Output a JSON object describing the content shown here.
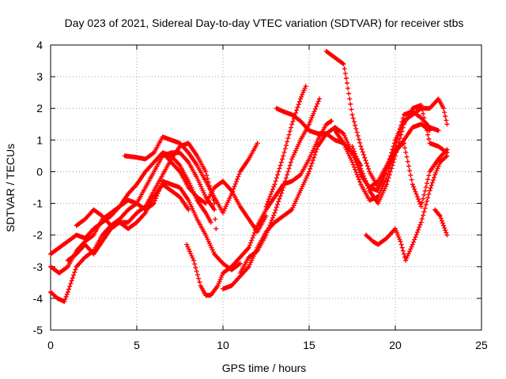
{
  "chart_data": {
    "type": "scatter",
    "title": "Day 023 of 2021, Sidereal Day-to-day VTEC variation (SDTVAR) for receiver stbs",
    "xlabel": "GPS time / hours",
    "ylabel": "SDTVAR / TECUs",
    "xlim": [
      0,
      25
    ],
    "ylim": [
      -5,
      4
    ],
    "x_ticks": [
      "0",
      "5",
      "10",
      "15",
      "20",
      "25"
    ],
    "y_ticks": [
      "4",
      "3",
      "2",
      "1",
      "0",
      "-1",
      "-2",
      "-3",
      "-4",
      "-5"
    ],
    "grid": true,
    "legend": "none",
    "marker": "plus",
    "color": "#ff0000",
    "series": [
      {
        "points": [
          [
            0,
            -2.6
          ],
          [
            0.5,
            -2.4
          ],
          [
            1,
            -2.2
          ],
          [
            1.5,
            -2.0
          ],
          [
            2,
            -2.1
          ],
          [
            2.5,
            -1.8
          ],
          [
            3,
            -1.6
          ],
          [
            3.5,
            -1.4
          ],
          [
            4,
            -1.1
          ],
          [
            4.5,
            -0.7
          ],
          [
            5,
            -0.4
          ],
          [
            5.5,
            0.0
          ],
          [
            6,
            0.3
          ],
          [
            6.5,
            0.6
          ],
          [
            7,
            0.5
          ],
          [
            7.5,
            0.2
          ],
          [
            8,
            -0.3
          ],
          [
            8.5,
            -0.9
          ],
          [
            9,
            -1.3
          ],
          [
            9.3,
            -1.6
          ]
        ]
      },
      {
        "points": [
          [
            0,
            -3.8
          ],
          [
            0.4,
            -4.0
          ],
          [
            0.8,
            -4.1
          ],
          [
            1,
            -3.8
          ],
          [
            1.5,
            -3.0
          ],
          [
            2,
            -2.7
          ],
          [
            2.5,
            -2.5
          ],
          [
            3,
            -2.0
          ],
          [
            3.5,
            -1.7
          ],
          [
            4,
            -1.5
          ],
          [
            4.5,
            -1.2
          ],
          [
            5,
            -1.0
          ],
          [
            5.5,
            -0.5
          ],
          [
            6,
            0.0
          ],
          [
            6.5,
            0.5
          ],
          [
            7,
            0.6
          ],
          [
            7.5,
            0.6
          ],
          [
            8,
            0.3
          ],
          [
            8.5,
            -0.2
          ],
          [
            9,
            -0.8
          ],
          [
            9.5,
            -1.2
          ],
          [
            9.6,
            -1.8
          ]
        ]
      },
      {
        "points": [
          [
            0,
            -3.0
          ],
          [
            0.5,
            -3.2
          ],
          [
            1,
            -3.0
          ],
          [
            1.5,
            -2.5
          ],
          [
            2,
            -2.2
          ],
          [
            2.5,
            -2.0
          ],
          [
            3,
            -1.5
          ],
          [
            3.5,
            -1.3
          ],
          [
            4,
            -1.1
          ],
          [
            4.5,
            -0.9
          ],
          [
            5,
            -1.0
          ],
          [
            5.5,
            -1.2
          ],
          [
            6,
            -1.0
          ],
          [
            6.5,
            -0.3
          ],
          [
            7,
            -0.4
          ],
          [
            7.5,
            -0.5
          ],
          [
            8,
            -0.9
          ],
          [
            8.5,
            -1.5
          ],
          [
            9,
            -2.0
          ],
          [
            9.5,
            -2.6
          ],
          [
            10,
            -2.9
          ],
          [
            10.5,
            -3.1
          ],
          [
            11,
            -2.9
          ]
        ]
      },
      {
        "points": [
          [
            1,
            -2.8
          ],
          [
            1.5,
            -2.6
          ],
          [
            2,
            -2.3
          ],
          [
            2.5,
            -2.6
          ],
          [
            3,
            -2.2
          ],
          [
            3.5,
            -1.8
          ],
          [
            4,
            -1.6
          ],
          [
            4.5,
            -1.6
          ],
          [
            5,
            -1.3
          ],
          [
            5.5,
            -1.1
          ],
          [
            6,
            -0.6
          ],
          [
            6.5,
            -0.1
          ],
          [
            7,
            0.4
          ],
          [
            7.5,
            0.8
          ],
          [
            8,
            0.9
          ],
          [
            8.5,
            0.5
          ],
          [
            9,
            0.0
          ],
          [
            9.5,
            -1.0
          ]
        ]
      },
      {
        "points": [
          [
            1.5,
            -1.7
          ],
          [
            2,
            -1.5
          ],
          [
            2.5,
            -1.2
          ],
          [
            3,
            -1.4
          ],
          [
            3.5,
            -1.7
          ],
          [
            4,
            -1.6
          ],
          [
            4.5,
            -1.8
          ],
          [
            5,
            -1.6
          ],
          [
            5.5,
            -1.3
          ],
          [
            6,
            -0.8
          ],
          [
            6.5,
            -0.4
          ],
          [
            7,
            -0.6
          ],
          [
            7.5,
            -0.8
          ],
          [
            8,
            -1.2
          ]
        ]
      },
      {
        "points": [
          [
            4.3,
            0.5
          ],
          [
            5,
            0.45
          ],
          [
            5.5,
            0.4
          ],
          [
            6,
            0.6
          ],
          [
            6.5,
            1.1
          ],
          [
            7,
            1.0
          ],
          [
            7.5,
            0.9
          ],
          [
            8,
            0.6
          ],
          [
            8.5,
            0.2
          ],
          [
            9,
            -0.3
          ],
          [
            9.5,
            -0.8
          ],
          [
            10,
            -1.3
          ],
          [
            10.5,
            -0.7
          ],
          [
            11,
            0.0
          ],
          [
            11.5,
            0.4
          ],
          [
            12,
            0.9
          ]
        ]
      },
      {
        "points": [
          [
            6.5,
            0.6
          ],
          [
            7,
            0.3
          ],
          [
            7.5,
            0.0
          ],
          [
            8,
            -0.5
          ],
          [
            8.5,
            -0.8
          ],
          [
            9,
            -1.0
          ],
          [
            9.5,
            -0.5
          ],
          [
            10,
            -0.3
          ],
          [
            10.5,
            -0.6
          ],
          [
            11,
            -1.1
          ],
          [
            11.5,
            -1.5
          ],
          [
            12,
            -1.9
          ],
          [
            12.5,
            -1.4
          ]
        ]
      },
      {
        "points": [
          [
            7.9,
            -2.3
          ],
          [
            8.3,
            -2.8
          ],
          [
            8.7,
            -3.6
          ],
          [
            9,
            -3.9
          ],
          [
            9.3,
            -3.9
          ],
          [
            9.7,
            -3.6
          ],
          [
            10,
            -3.2
          ],
          [
            10.5,
            -3.0
          ],
          [
            11,
            -2.7
          ],
          [
            11.5,
            -2.4
          ],
          [
            12,
            -1.7
          ],
          [
            12.5,
            -1.2
          ],
          [
            13,
            -0.8
          ],
          [
            13.5,
            -0.4
          ],
          [
            14,
            -0.3
          ],
          [
            14.5,
            -0.1
          ],
          [
            15,
            0.4
          ],
          [
            15.5,
            1.0
          ],
          [
            16,
            1.5
          ],
          [
            16.3,
            1.6
          ]
        ]
      },
      {
        "points": [
          [
            10,
            -3.7
          ],
          [
            10.5,
            -3.6
          ],
          [
            11,
            -3.3
          ],
          [
            11.5,
            -3.0
          ],
          [
            12,
            -2.4
          ],
          [
            12.5,
            -1.9
          ],
          [
            13,
            -1.6
          ],
          [
            13.5,
            -1.4
          ],
          [
            14,
            -1.2
          ],
          [
            14.5,
            -0.6
          ],
          [
            15,
            0.0
          ],
          [
            15.5,
            0.8
          ],
          [
            16,
            1.2
          ],
          [
            16.5,
            1.0
          ],
          [
            17,
            0.9
          ],
          [
            17.5,
            0.6
          ],
          [
            18,
            0.2
          ]
        ]
      },
      {
        "points": [
          [
            11,
            -3.2
          ],
          [
            11.5,
            -2.7
          ],
          [
            12,
            -2.5
          ],
          [
            12.5,
            -2.0
          ],
          [
            13,
            -1.3
          ],
          [
            13.5,
            -0.5
          ],
          [
            14,
            0.4
          ],
          [
            14.5,
            1.0
          ],
          [
            15,
            1.5
          ],
          [
            15.3,
            1.9
          ],
          [
            15.6,
            2.3
          ]
        ]
      },
      {
        "points": [
          [
            12.5,
            -1.1
          ],
          [
            13,
            -0.4
          ],
          [
            13.5,
            0.5
          ],
          [
            14,
            1.5
          ],
          [
            14.5,
            2.3
          ],
          [
            14.8,
            2.7
          ]
        ]
      },
      {
        "points": [
          [
            13.1,
            2.0
          ],
          [
            13.5,
            1.9
          ],
          [
            14,
            1.8
          ],
          [
            14.5,
            1.6
          ],
          [
            15,
            1.3
          ],
          [
            15.5,
            1.2
          ],
          [
            16,
            1.2
          ],
          [
            16.5,
            1.4
          ],
          [
            17,
            1.2
          ],
          [
            17.5,
            0.6
          ],
          [
            18,
            -0.1
          ],
          [
            18.5,
            -0.5
          ],
          [
            19,
            -0.6
          ],
          [
            19.5,
            0.1
          ],
          [
            20,
            0.6
          ],
          [
            20.5,
            1.0
          ],
          [
            21,
            1.4
          ],
          [
            21.5,
            1.5
          ],
          [
            22,
            1.3
          ]
        ]
      },
      {
        "points": [
          [
            16,
            3.8
          ],
          [
            16.5,
            3.6
          ],
          [
            17,
            3.4
          ],
          [
            17.2,
            2.8
          ],
          [
            17.5,
            1.8
          ],
          [
            18,
            0.8
          ],
          [
            18.5,
            0.0
          ],
          [
            19,
            -0.5
          ],
          [
            19.5,
            0.1
          ],
          [
            20,
            1.0
          ],
          [
            20.5,
            1.6
          ],
          [
            21,
            1.8
          ],
          [
            21.5,
            2.0
          ],
          [
            22,
            2.0
          ],
          [
            22.5,
            2.3
          ],
          [
            22.8,
            2.0
          ],
          [
            23,
            1.5
          ]
        ]
      },
      {
        "points": [
          [
            16.5,
            1.3
          ],
          [
            17,
            0.9
          ],
          [
            17.5,
            0.3
          ],
          [
            18,
            -0.4
          ],
          [
            18.5,
            -0.9
          ],
          [
            19,
            -0.8
          ],
          [
            19.5,
            -0.2
          ],
          [
            20,
            0.8
          ],
          [
            20.5,
            1.8
          ],
          [
            21,
            1.9
          ],
          [
            21.5,
            1.7
          ],
          [
            22,
            1.4
          ],
          [
            22.5,
            1.3
          ]
        ]
      },
      {
        "points": [
          [
            17.5,
            0.8
          ],
          [
            18,
            0.1
          ],
          [
            18.5,
            -0.6
          ],
          [
            19,
            -1.0
          ],
          [
            19.5,
            -0.4
          ],
          [
            20,
            0.5
          ],
          [
            20.5,
            1.5
          ],
          [
            21,
            2.0
          ],
          [
            21.5,
            2.1
          ],
          [
            22,
            0.9
          ],
          [
            22.5,
            0.8
          ],
          [
            23,
            0.6
          ]
        ]
      },
      {
        "points": [
          [
            18.3,
            -2.0
          ],
          [
            18.7,
            -2.2
          ],
          [
            19,
            -2.3
          ],
          [
            19.5,
            -2.1
          ],
          [
            20,
            -1.8
          ],
          [
            20.3,
            -2.2
          ],
          [
            20.6,
            -2.8
          ],
          [
            21,
            -2.3
          ],
          [
            21.5,
            -1.6
          ],
          [
            22,
            -0.6
          ],
          [
            22.3,
            -0.1
          ],
          [
            22.6,
            0.3
          ],
          [
            23,
            0.5
          ]
        ]
      },
      {
        "points": [
          [
            18.5,
            -0.5
          ],
          [
            19,
            -0.3
          ],
          [
            19.5,
            0.2
          ],
          [
            20,
            0.7
          ],
          [
            20.5,
            0.9
          ],
          [
            21,
            -0.4
          ],
          [
            21.5,
            -1.1
          ],
          [
            22,
            0.0
          ],
          [
            22.5,
            0.4
          ],
          [
            23,
            0.7
          ]
        ]
      },
      {
        "points": [
          [
            22.3,
            -1.2
          ],
          [
            22.6,
            -1.4
          ],
          [
            22.8,
            -1.7
          ],
          [
            23,
            -2.0
          ]
        ]
      }
    ]
  }
}
